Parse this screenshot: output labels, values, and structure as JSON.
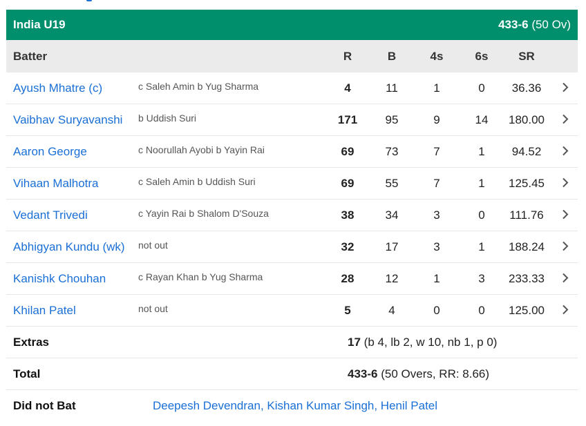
{
  "team": {
    "name": "India U19",
    "score": "433-6",
    "overs": "(50 Ov)"
  },
  "columns": {
    "batter": "Batter",
    "r": "R",
    "b": "B",
    "fours": "4s",
    "sixes": "6s",
    "sr": "SR"
  },
  "batters": [
    {
      "name": "Ayush Mhatre (c)",
      "dismissal": "c Saleh Amin b Yug Sharma",
      "r": "4",
      "b": "11",
      "fours": "1",
      "sixes": "0",
      "sr": "36.36"
    },
    {
      "name": "Vaibhav Suryavanshi",
      "dismissal": "b Uddish Suri",
      "r": "171",
      "b": "95",
      "fours": "9",
      "sixes": "14",
      "sr": "180.00"
    },
    {
      "name": "Aaron George",
      "dismissal": "c Noorullah Ayobi b Yayin Rai",
      "r": "69",
      "b": "73",
      "fours": "7",
      "sixes": "1",
      "sr": "94.52"
    },
    {
      "name": "Vihaan Malhotra",
      "dismissal": "c Saleh Amin b Uddish Suri",
      "r": "69",
      "b": "55",
      "fours": "7",
      "sixes": "1",
      "sr": "125.45"
    },
    {
      "name": "Vedant Trivedi",
      "dismissal": "c Yayin Rai b Shalom D'Souza",
      "r": "38",
      "b": "34",
      "fours": "3",
      "sixes": "0",
      "sr": "111.76"
    },
    {
      "name": "Abhigyan Kundu (wk)",
      "dismissal": "not out",
      "r": "32",
      "b": "17",
      "fours": "3",
      "sixes": "1",
      "sr": "188.24"
    },
    {
      "name": "Kanishk Chouhan",
      "dismissal": "c Rayan Khan b Yug Sharma",
      "r": "28",
      "b": "12",
      "fours": "1",
      "sixes": "3",
      "sr": "233.33"
    },
    {
      "name": "Khilan Patel",
      "dismissal": "not out",
      "r": "5",
      "b": "4",
      "fours": "0",
      "sixes": "0",
      "sr": "125.00"
    }
  ],
  "extras": {
    "label": "Extras",
    "total": "17",
    "detail": "(b 4, lb 2, w 10, nb 1, p 0)"
  },
  "total": {
    "label": "Total",
    "score": "433-6",
    "detail": "(50 Overs, RR: 8.66)"
  },
  "did_not_bat": {
    "label": "Did not Bat",
    "players": "Deepesh Devendran, Kishan Kumar Singh, Henil Patel"
  },
  "icons": {
    "row_chevron": "chevron-right-icon"
  },
  "colors": {
    "header": "#008f6d",
    "link": "#1a6fd6"
  }
}
